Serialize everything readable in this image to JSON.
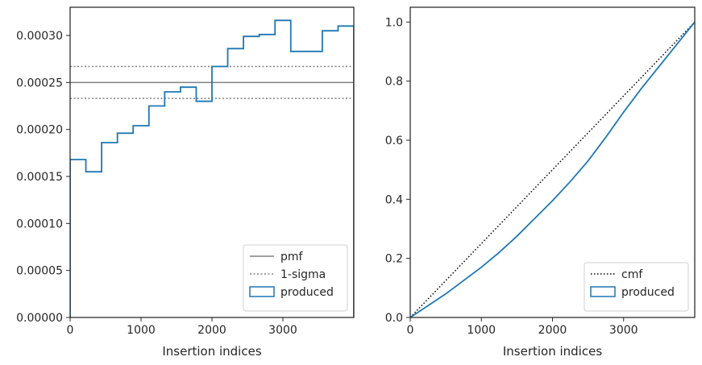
{
  "chart_data": [
    {
      "type": "line",
      "xlabel": "Insertion indices",
      "ylabel": "",
      "xlim": [
        0,
        4000
      ],
      "ylim": [
        0,
        0.00033
      ],
      "xticks": [
        "0",
        "1000",
        "2000",
        "3000"
      ],
      "yticks": [
        "0.00000",
        "0.00005",
        "0.00010",
        "0.00015",
        "0.00020",
        "0.00025",
        "0.00030"
      ],
      "legend_position": "bottom-right",
      "legend": [
        "pmf",
        "1-sigma",
        "produced"
      ],
      "hlines": [
        {
          "name": "pmf",
          "value": 0.00025,
          "style": "solid",
          "color": "#808080"
        },
        {
          "name": "1-sigma",
          "value": 0.000267,
          "style": "dotted",
          "color": "#808080"
        },
        {
          "name": "1-sigma",
          "value": 0.000233,
          "style": "dotted",
          "color": "#808080"
        }
      ],
      "series": [
        {
          "name": "produced",
          "type": "step-histogram",
          "color": "#1f77b4",
          "bin_edges": [
            0,
            222,
            444,
            667,
            889,
            1111,
            1333,
            1556,
            1778,
            2000,
            2222,
            2444,
            2667,
            2889,
            3111,
            3333,
            3556,
            3778,
            4000
          ],
          "values": [
            0.000168,
            0.000155,
            0.000186,
            0.000196,
            0.000204,
            0.000225,
            0.00024,
            0.000245,
            0.00023,
            0.000267,
            0.000286,
            0.000299,
            0.000301,
            0.000316,
            0.000283,
            0.000283,
            0.000305,
            0.00031
          ]
        }
      ]
    },
    {
      "type": "line",
      "xlabel": "Insertion indices",
      "ylabel": "",
      "xlim": [
        0,
        4000
      ],
      "ylim": [
        0,
        1.05
      ],
      "xticks": [
        "0",
        "1000",
        "2000",
        "3000"
      ],
      "yticks": [
        "0.0",
        "0.2",
        "0.4",
        "0.6",
        "0.8",
        "1.0"
      ],
      "legend_position": "bottom-right",
      "legend": [
        "cmf",
        "produced"
      ],
      "series": [
        {
          "name": "cmf",
          "style": "dotted",
          "color": "#000000",
          "x": [
            0,
            4000
          ],
          "y": [
            0,
            1
          ]
        },
        {
          "name": "produced",
          "color": "#1f77b4",
          "x": [
            0,
            250,
            500,
            750,
            1000,
            1250,
            1500,
            1750,
            2000,
            2250,
            2500,
            2750,
            3000,
            3250,
            3500,
            3750,
            4000
          ],
          "y": [
            0,
            0.04,
            0.08,
            0.125,
            0.17,
            0.22,
            0.275,
            0.335,
            0.395,
            0.46,
            0.53,
            0.61,
            0.695,
            0.775,
            0.85,
            0.925,
            1.0
          ]
        }
      ]
    }
  ]
}
